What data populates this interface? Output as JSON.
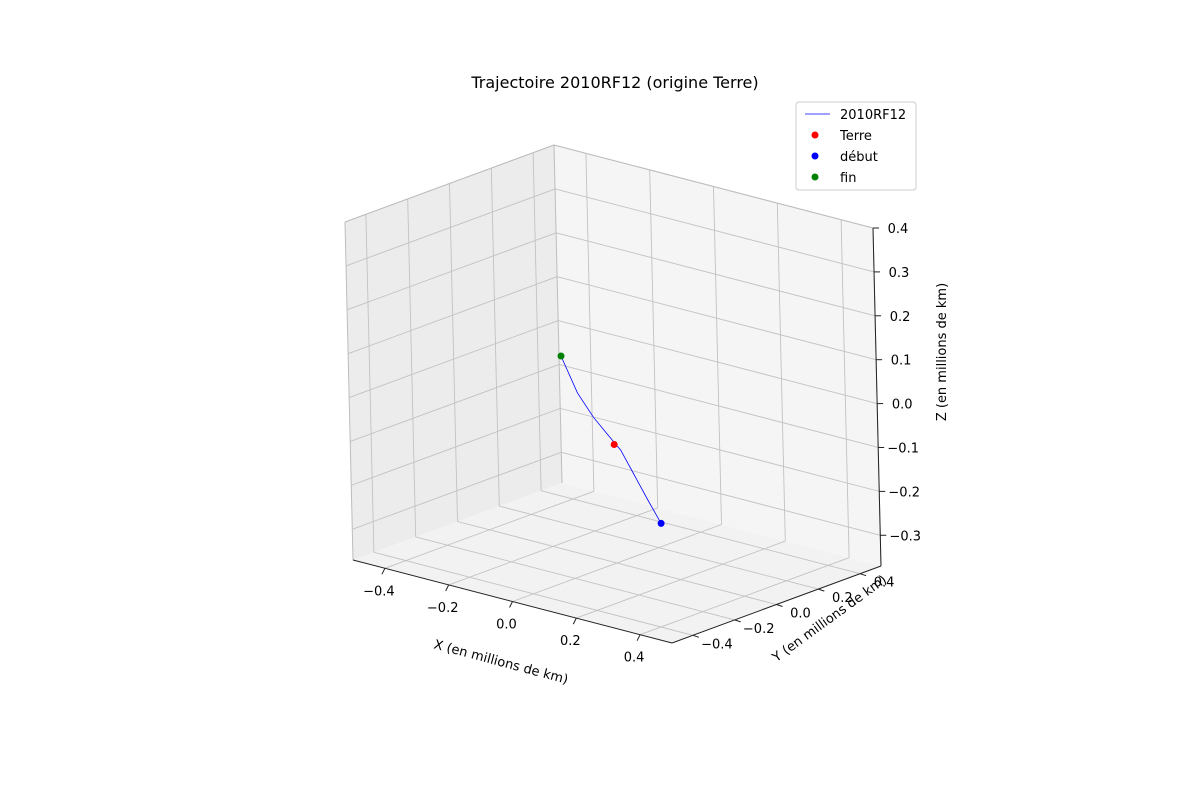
{
  "chart_data": {
    "type": "line3d",
    "title": "Trajectoire 2010RF12 (origine Terre)",
    "xlabel": "X (en millions de km)",
    "ylabel": "Y (en millions de km)",
    "zlabel": "Z (en millions de km)",
    "xlim": [
      -0.5,
      0.5
    ],
    "ylim": [
      -0.5,
      0.5
    ],
    "zlim": [
      -0.37,
      0.4
    ],
    "xticks": [
      "-0.4",
      "-0.2",
      "0.0",
      "0.2",
      "0.4"
    ],
    "yticks": [
      "-0.4",
      "-0.2",
      "0.0",
      "0.2",
      "0.4"
    ],
    "zticks": [
      "-0.3",
      "-0.2",
      "-0.1",
      "0.0",
      "0.1",
      "0.2",
      "0.3",
      "0.4"
    ],
    "grid": true,
    "legend_position": "top-right",
    "series": [
      {
        "name": "2010RF12",
        "kind": "line",
        "color": "#0000ff",
        "points": [
          [
            -0.318,
            0.236,
            0.0
          ],
          [
            -0.226,
            0.171,
            -0.055
          ],
          [
            -0.13,
            0.1,
            -0.08
          ],
          [
            -0.04,
            0.03,
            -0.09
          ],
          [
            0.0,
            0.0,
            -0.095
          ],
          [
            0.04,
            -0.03,
            -0.1
          ],
          [
            0.12,
            -0.09,
            -0.13
          ],
          [
            0.2,
            -0.15,
            -0.16
          ],
          [
            0.281,
            -0.209,
            -0.19
          ]
        ]
      },
      {
        "name": "Terre",
        "kind": "scatter",
        "color": "#ff0000",
        "points": [
          [
            0.0,
            0.0,
            -0.1
          ]
        ]
      },
      {
        "name": "début",
        "kind": "scatter",
        "color": "#0000ff",
        "points": [
          [
            0.281,
            -0.209,
            -0.19
          ]
        ]
      },
      {
        "name": "fin",
        "kind": "scatter",
        "color": "#008000",
        "points": [
          [
            -0.318,
            0.236,
            0.0
          ]
        ]
      }
    ]
  }
}
